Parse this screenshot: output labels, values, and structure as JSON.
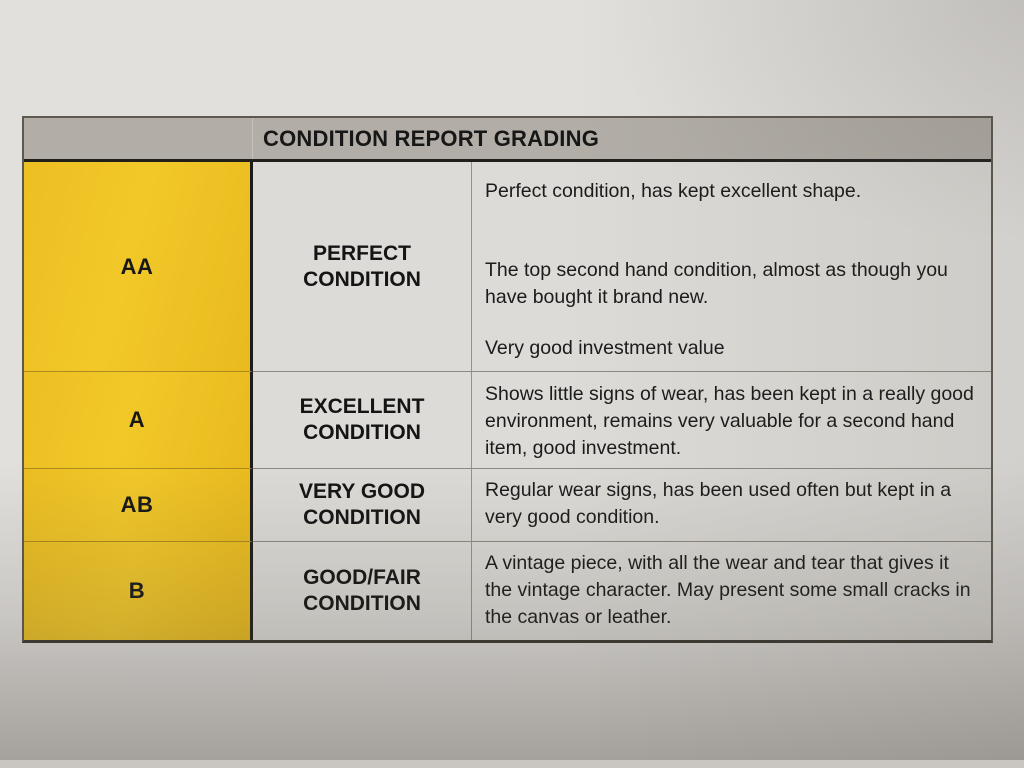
{
  "document": {
    "title": "CONDITION REPORT GRADING",
    "rows": [
      {
        "grade": "AA",
        "label_line1": "PERFECT",
        "label_line2": "CONDITION",
        "paragraphs": [
          "Perfect condition, has kept excellent shape.",
          "The top second hand condition, almost as though you have bought it brand new.",
          "Very good investment value"
        ]
      },
      {
        "grade": "A",
        "label_line1": "EXCELLENT",
        "label_line2": "CONDITION",
        "paragraphs": [
          "Shows little signs of wear, has been kept in a really good environment, remains very valuable for a second hand item, good investment."
        ]
      },
      {
        "grade": "AB",
        "label_line1": "VERY GOOD",
        "label_line2": "CONDITION",
        "paragraphs": [
          "Regular wear signs, has been used often but kept in a very good condition."
        ]
      },
      {
        "grade": "B",
        "label_line1": "GOOD/FAIR",
        "label_line2": "CONDITION",
        "paragraphs": [
          "A vintage piece, with all the wear and tear that gives it the vintage character. May present some small cracks in the canvas or leather."
        ]
      }
    ],
    "colors": {
      "grade_column_bg": "#efc226",
      "header_bg": "#b2aea7",
      "cell_bg": "#dddbd7",
      "paper_bg": "#e2e0dd",
      "header_border": "#211f1c",
      "text": "#1a1a1a"
    }
  }
}
